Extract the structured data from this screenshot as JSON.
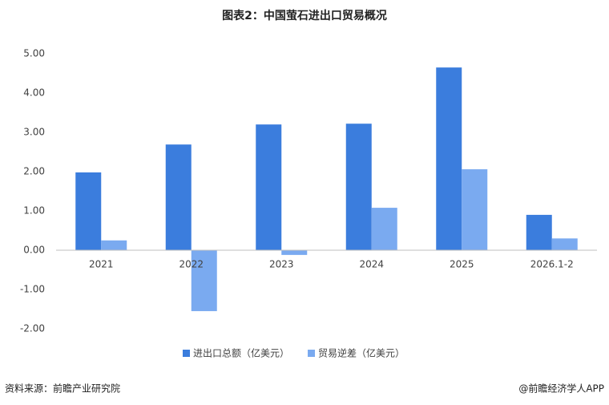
{
  "chart_data": {
    "type": "bar",
    "title": "图表2：中国萤石进出口贸易概况",
    "categories": [
      "2021",
      "2022",
      "2023",
      "2024",
      "2025",
      "2026.1-2"
    ],
    "series": [
      {
        "name": "进出口总额（亿美元）",
        "color": "#3b7ddd",
        "values": [
          1.98,
          2.69,
          3.2,
          3.22,
          4.65,
          0.9
        ]
      },
      {
        "name": "贸易逆差（亿美元）",
        "color": "#7aaaf0",
        "values": [
          0.25,
          -1.55,
          -0.12,
          1.08,
          2.06,
          0.3
        ]
      }
    ],
    "ylim": [
      -2,
      5
    ],
    "yticks": [
      {
        "value": -2,
        "label": "-2.00"
      },
      {
        "value": -1,
        "label": "-1.00"
      },
      {
        "value": 0,
        "label": "0.00"
      },
      {
        "value": 1,
        "label": "1.00"
      },
      {
        "value": 2,
        "label": "2.00"
      },
      {
        "value": 3,
        "label": "3.00"
      },
      {
        "value": 4,
        "label": "4.00"
      },
      {
        "value": 5,
        "label": "5.00"
      }
    ],
    "grid": false,
    "legend": "bottom"
  },
  "source": "资料来源：前瞻产业研究院",
  "credit": "@前瞻经济学人APP"
}
